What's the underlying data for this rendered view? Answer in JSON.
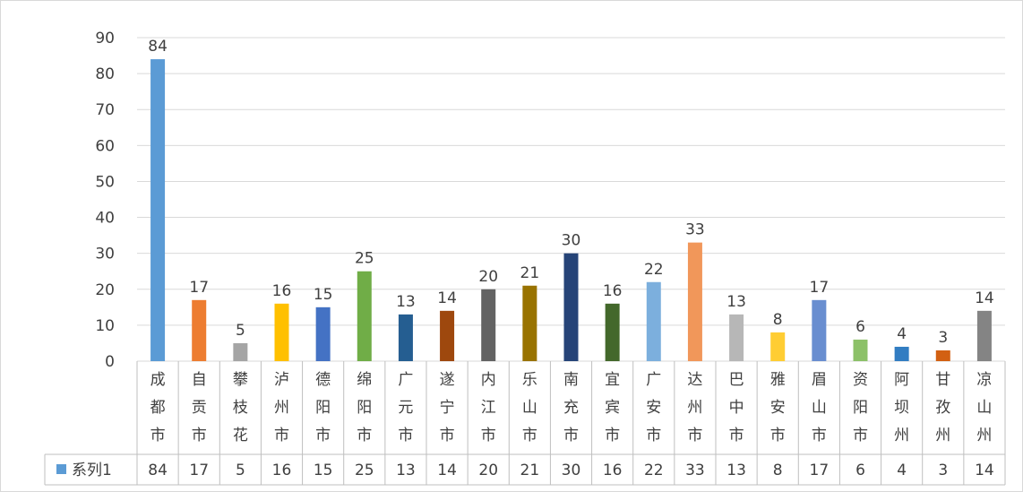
{
  "chart_data": {
    "type": "bar",
    "categories": [
      "成都市",
      "自贡市",
      "攀枝花",
      "泸州市",
      "德阳市",
      "绵阳市",
      "广元市",
      "遂宁市",
      "内江市",
      "乐山市",
      "南充市",
      "宜宾市",
      "广安市",
      "达州市",
      "巴中市",
      "雅安市",
      "眉山市",
      "资阳市",
      "阿坝州",
      "甘孜州",
      "凉山州"
    ],
    "series": [
      {
        "name": "系列1",
        "values": [
          84,
          17,
          5,
          16,
          15,
          25,
          13,
          14,
          20,
          21,
          30,
          16,
          22,
          33,
          13,
          8,
          17,
          6,
          4,
          3,
          14
        ]
      }
    ],
    "data_labels": [
      "84",
      "17",
      "5",
      "16",
      "15",
      "25",
      "13",
      "14",
      "20",
      "21",
      "30",
      "16",
      "22",
      "33",
      "13",
      "8",
      "17",
      "6",
      "4",
      "3",
      "14"
    ],
    "table_values": [
      "84",
      "17",
      "5",
      "16",
      "15",
      "25",
      "13",
      "14",
      "20",
      "21",
      "30",
      "16",
      "22",
      "33",
      "13",
      "8",
      "17",
      "6",
      "4",
      "3",
      "14"
    ],
    "ylim": [
      0,
      90
    ],
    "yticks": [
      "0",
      "10",
      "20",
      "30",
      "40",
      "50",
      "60",
      "70",
      "80",
      "90"
    ],
    "grid": true,
    "data_table": true,
    "bar_colors": [
      "#5b9bd5",
      "#ed7d31",
      "#a5a5a5",
      "#ffc000",
      "#4472c4",
      "#70ad47",
      "#255e91",
      "#9e480e",
      "#636363",
      "#997300",
      "#264478",
      "#43682b",
      "#7cafdd",
      "#f1975a",
      "#b7b7b7",
      "#ffcd33",
      "#698ed0",
      "#8cc168",
      "#327dc2",
      "#d26012",
      "#848484"
    ],
    "legend_color": "#5b9bd5"
  }
}
